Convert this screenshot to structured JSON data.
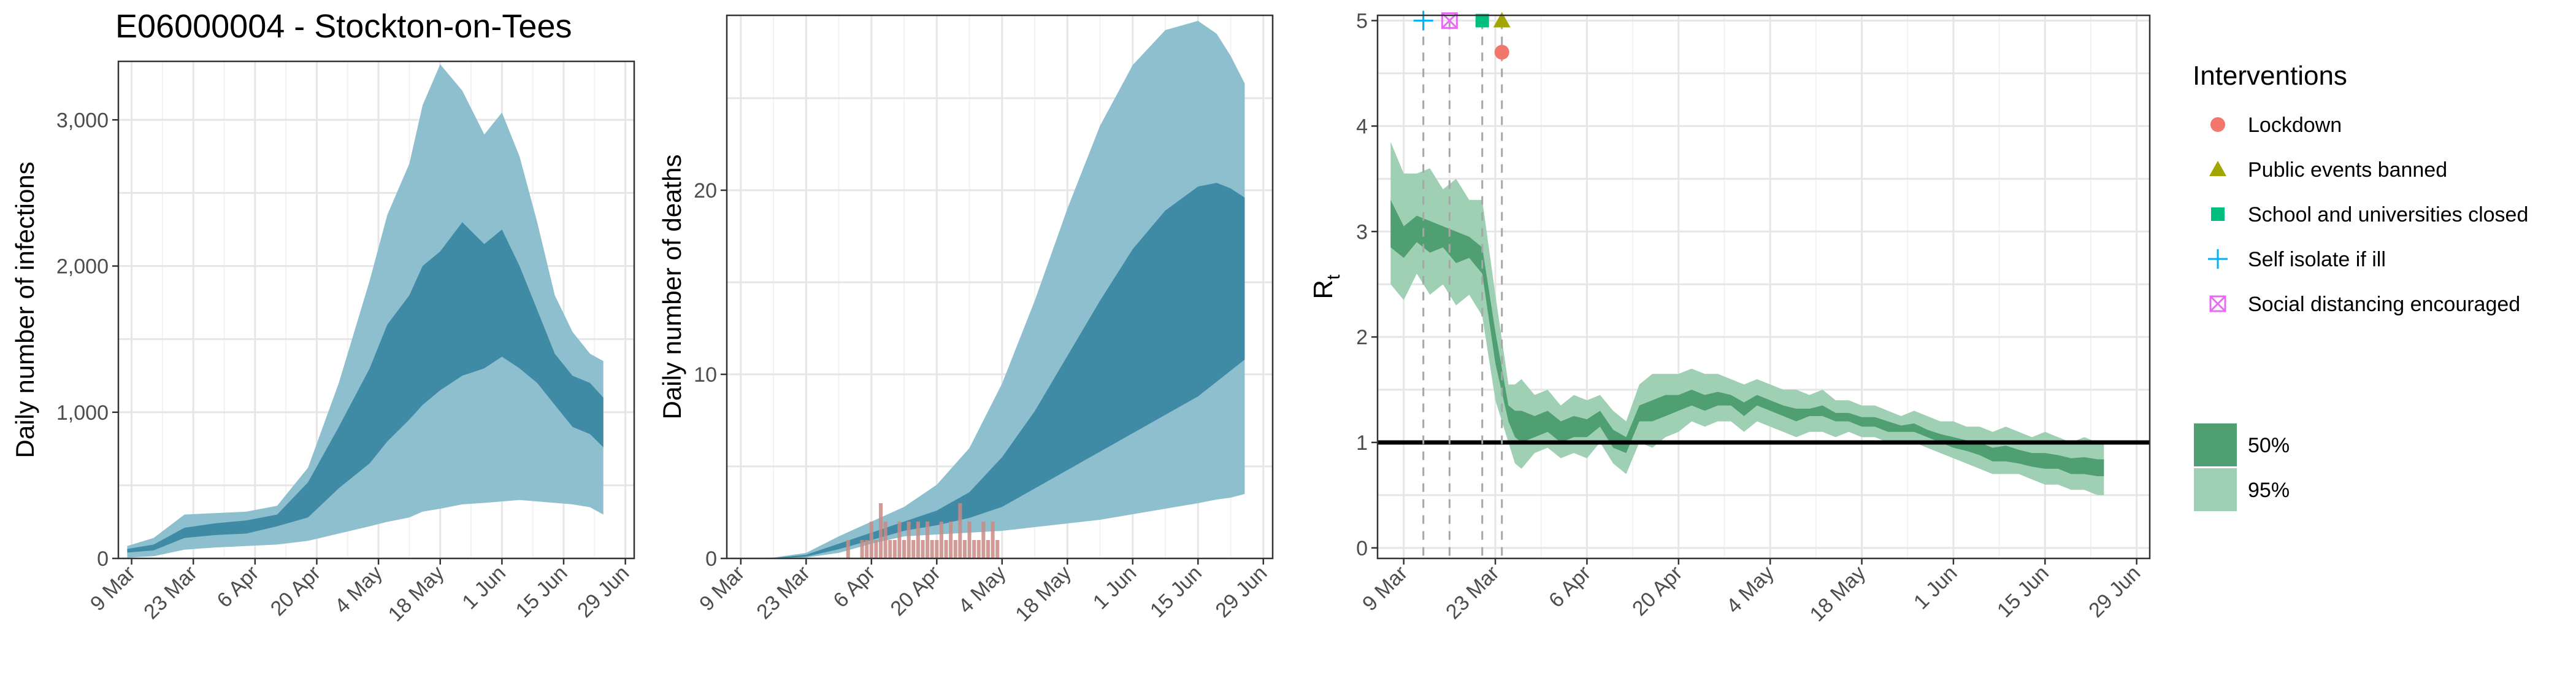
{
  "title": "E06000004 - Stockton-on-Tees",
  "colors": {
    "infections_95": "#8dbfcf",
    "infections_50": "#3f8ba6",
    "deaths_95": "#8dbfcf",
    "deaths_50": "#3f8ba6",
    "observed_deaths": "#c98b86",
    "rt_95": "#9fd0b4",
    "rt_50": "#4f9f73",
    "lockdown": "#f1776d",
    "public_events": "#a3a500",
    "schools": "#00bf7d",
    "self_isolate": "#00b0f6",
    "social_distancing": "#e76bf3"
  },
  "chart_data": [
    {
      "type": "area",
      "id": "infections",
      "ylabel": "Daily number of infections",
      "xlabel": "",
      "ylim": [
        0,
        3400
      ],
      "yticks": [
        0,
        1000,
        2000,
        3000
      ],
      "ytick_labels": [
        "0",
        "1,000",
        "2,000",
        "3,000"
      ],
      "xlim_day": [
        -3,
        114
      ],
      "xticks_day": [
        0,
        14,
        28,
        42,
        56,
        70,
        84,
        98,
        112
      ],
      "xtick_labels": [
        "9 Mar",
        "23 Mar",
        "6 Apr",
        "20 Apr",
        "4 May",
        "18 May",
        "1 Jun",
        "15 Jun",
        "29 Jun"
      ],
      "x_day": [
        -1,
        5,
        12,
        19,
        26,
        33,
        40,
        47,
        54,
        58,
        63,
        66,
        70,
        75,
        80,
        84,
        88,
        92,
        96,
        100,
        104,
        107
      ],
      "ci95_low": [
        5,
        15,
        60,
        75,
        85,
        95,
        120,
        170,
        220,
        250,
        280,
        320,
        340,
        370,
        380,
        390,
        400,
        390,
        380,
        370,
        350,
        300
      ],
      "ci95_high": [
        85,
        140,
        300,
        310,
        320,
        360,
        620,
        1200,
        1900,
        2350,
        2700,
        3100,
        3380,
        3200,
        2900,
        3050,
        2750,
        2300,
        1800,
        1550,
        1400,
        1350
      ],
      "ci50_low": [
        40,
        55,
        140,
        160,
        170,
        220,
        280,
        480,
        650,
        800,
        950,
        1050,
        1150,
        1250,
        1300,
        1380,
        1300,
        1200,
        1050,
        900,
        850,
        760
      ],
      "ci50_high": [
        65,
        95,
        210,
        240,
        260,
        300,
        520,
        900,
        1300,
        1600,
        1800,
        2000,
        2100,
        2300,
        2150,
        2250,
        2000,
        1700,
        1400,
        1250,
        1200,
        1100
      ]
    },
    {
      "type": "area",
      "id": "deaths",
      "ylabel": "Daily number of deaths",
      "xlabel": "",
      "ylim": [
        0,
        29.5
      ],
      "yticks": [
        0,
        10,
        20
      ],
      "ytick_labels": [
        "0",
        "10",
        "20"
      ],
      "xlim_day": [
        -3,
        114
      ],
      "xticks_day": [
        0,
        14,
        28,
        42,
        56,
        70,
        84,
        98,
        112
      ],
      "xtick_labels": [
        "9 Mar",
        "23 Mar",
        "6 Apr",
        "20 Apr",
        "4 May",
        "18 May",
        "1 Jun",
        "15 Jun",
        "29 Jun"
      ],
      "x_day": [
        0,
        7,
        14,
        21,
        28,
        35,
        42,
        49,
        56,
        63,
        70,
        77,
        84,
        91,
        98,
        102,
        105,
        108
      ],
      "ci95_low": [
        0,
        0,
        0.05,
        0.3,
        0.8,
        1.2,
        1.3,
        1.4,
        1.5,
        1.7,
        1.9,
        2.1,
        2.4,
        2.7,
        3.0,
        3.2,
        3.3,
        3.5
      ],
      "ci95_high": [
        0,
        0.05,
        0.3,
        1.2,
        2.0,
        2.8,
        4.0,
        6.0,
        9.5,
        14.0,
        19.0,
        23.5,
        26.8,
        28.7,
        29.2,
        28.5,
        27.3,
        25.8
      ],
      "ci50_low": [
        0,
        0,
        0.1,
        0.5,
        1.0,
        1.5,
        1.8,
        2.2,
        2.8,
        3.8,
        4.8,
        5.8,
        6.8,
        7.8,
        8.8,
        9.6,
        10.2,
        10.8
      ],
      "ci50_high": [
        0,
        0.02,
        0.2,
        0.8,
        1.4,
        2.0,
        2.6,
        3.6,
        5.5,
        8.0,
        11.0,
        14.0,
        16.8,
        18.9,
        20.2,
        20.4,
        20.1,
        19.6
      ],
      "observed_day": [
        23,
        24,
        25,
        26,
        27,
        28,
        29,
        30,
        31,
        32,
        33,
        34,
        35,
        36,
        37,
        38,
        39,
        40,
        41,
        42,
        43,
        44,
        45,
        46,
        47,
        48,
        49,
        50,
        51,
        52,
        53,
        54,
        55
      ],
      "observed_deaths": [
        1,
        0,
        0,
        1,
        1,
        2,
        1,
        3,
        2,
        1,
        1,
        2,
        1,
        2,
        1,
        2,
        1,
        2,
        1,
        1,
        2,
        1,
        2,
        1,
        3,
        1,
        2,
        1,
        1,
        2,
        1,
        2,
        1
      ]
    },
    {
      "type": "line",
      "id": "rt",
      "ylabel": "R",
      "ylabel_subscript": "t",
      "xlabel": "",
      "ylim": [
        -0.1,
        5.05
      ],
      "yticks": [
        0,
        1,
        2,
        3,
        4,
        5
      ],
      "ytick_labels": [
        "0",
        "1",
        "2",
        "3",
        "4",
        "5"
      ],
      "xlim_day": [
        -4,
        114
      ],
      "xticks_day": [
        0,
        14,
        28,
        42,
        56,
        70,
        84,
        98,
        112
      ],
      "xtick_labels": [
        "9 Mar",
        "23 Mar",
        "6 Apr",
        "20 Apr",
        "4 May",
        "18 May",
        "1 Jun",
        "15 Jun",
        "29 Jun"
      ],
      "reference_line": 1,
      "x_day": [
        -2,
        0,
        2,
        4,
        6,
        8,
        10,
        12,
        14,
        16,
        17,
        18,
        20,
        22,
        24,
        26,
        28,
        30,
        32,
        34,
        36,
        38,
        40,
        42,
        44,
        46,
        48,
        50,
        52,
        54,
        56,
        58,
        60,
        62,
        64,
        66,
        68,
        70,
        72,
        74,
        76,
        78,
        80,
        82,
        84,
        86,
        88,
        90,
        92,
        94,
        96,
        98,
        100,
        102,
        104,
        106,
        107
      ],
      "ci95_low": [
        2.5,
        2.35,
        2.6,
        2.4,
        2.5,
        2.3,
        2.4,
        2.2,
        1.4,
        1.0,
        0.8,
        0.75,
        0.9,
        0.95,
        0.85,
        0.9,
        0.85,
        1.0,
        0.8,
        0.7,
        1.0,
        0.95,
        1.05,
        1.1,
        1.2,
        1.15,
        1.2,
        1.2,
        1.1,
        1.2,
        1.15,
        1.1,
        1.05,
        1.1,
        1.1,
        1.05,
        1.1,
        1.05,
        1.05,
        1.0,
        1.0,
        1.0,
        0.95,
        0.9,
        0.85,
        0.8,
        0.75,
        0.7,
        0.7,
        0.7,
        0.65,
        0.6,
        0.6,
        0.55,
        0.55,
        0.5,
        0.5
      ],
      "ci95_high": [
        3.85,
        3.55,
        3.55,
        3.6,
        3.4,
        3.5,
        3.3,
        3.3,
        2.4,
        1.55,
        1.55,
        1.6,
        1.45,
        1.5,
        1.35,
        1.45,
        1.4,
        1.45,
        1.3,
        1.2,
        1.55,
        1.65,
        1.65,
        1.65,
        1.7,
        1.65,
        1.65,
        1.6,
        1.55,
        1.6,
        1.55,
        1.5,
        1.5,
        1.45,
        1.5,
        1.4,
        1.4,
        1.35,
        1.35,
        1.3,
        1.25,
        1.3,
        1.25,
        1.2,
        1.2,
        1.15,
        1.15,
        1.1,
        1.15,
        1.1,
        1.05,
        1.1,
        1.05,
        1.0,
        1.05,
        1.0,
        1.0
      ],
      "ci50_low": [
        2.85,
        2.75,
        2.9,
        2.8,
        2.85,
        2.7,
        2.75,
        2.6,
        1.75,
        1.2,
        1.05,
        1.0,
        1.05,
        1.1,
        1.0,
        1.05,
        1.05,
        1.15,
        0.95,
        0.9,
        1.2,
        1.2,
        1.25,
        1.3,
        1.35,
        1.3,
        1.35,
        1.35,
        1.25,
        1.35,
        1.3,
        1.25,
        1.2,
        1.25,
        1.25,
        1.2,
        1.2,
        1.15,
        1.15,
        1.1,
        1.1,
        1.1,
        1.05,
        1.0,
        0.95,
        0.92,
        0.88,
        0.82,
        0.82,
        0.8,
        0.77,
        0.75,
        0.75,
        0.7,
        0.7,
        0.68,
        0.68
      ],
      "ci50_high": [
        3.3,
        3.05,
        3.15,
        3.1,
        3.05,
        3.0,
        2.95,
        2.85,
        2.05,
        1.35,
        1.3,
        1.3,
        1.25,
        1.3,
        1.2,
        1.25,
        1.22,
        1.3,
        1.12,
        1.05,
        1.35,
        1.4,
        1.45,
        1.45,
        1.5,
        1.45,
        1.48,
        1.45,
        1.38,
        1.45,
        1.4,
        1.35,
        1.32,
        1.32,
        1.35,
        1.28,
        1.28,
        1.24,
        1.24,
        1.2,
        1.16,
        1.18,
        1.12,
        1.08,
        1.05,
        1.02,
        1.0,
        0.95,
        0.97,
        0.93,
        0.9,
        0.9,
        0.88,
        0.85,
        0.86,
        0.84,
        0.84
      ],
      "interventions": [
        {
          "name": "Lockdown",
          "day": 15,
          "y": 4.7,
          "marker": "circle",
          "color_key": "lockdown"
        },
        {
          "name": "Public events banned",
          "day": 15,
          "y": 5.0,
          "marker": "triangle",
          "color_key": "public_events"
        },
        {
          "name": "School and universities closed",
          "day": 12,
          "y": 5.0,
          "marker": "square",
          "color_key": "schools"
        },
        {
          "name": "Self isolate if ill",
          "day": 3,
          "y": 5.0,
          "marker": "plus",
          "color_key": "self_isolate"
        },
        {
          "name": "Social distancing encouraged",
          "day": 7,
          "y": 5.0,
          "marker": "boxcross",
          "color_key": "social_distancing"
        }
      ],
      "legend_title": "Interventions",
      "ci_legend": [
        {
          "label": "50%",
          "color_key": "rt_50"
        },
        {
          "label": "95%",
          "color_key": "rt_95"
        }
      ]
    }
  ]
}
